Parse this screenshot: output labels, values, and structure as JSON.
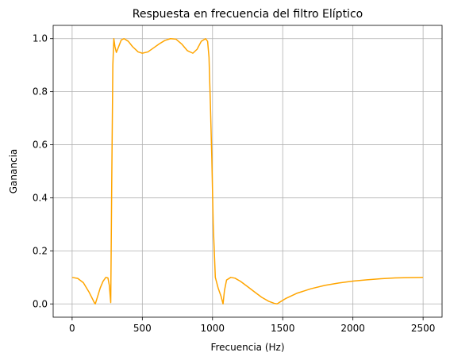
{
  "chart_data": {
    "type": "line",
    "title": "Respuesta en frecuencia del filtro Elíptico",
    "xlabel": "Frecuencia (Hz)",
    "ylabel": "Ganancia",
    "xlim": [
      -135,
      2635
    ],
    "ylim": [
      -0.05,
      1.05
    ],
    "xticks": [
      0,
      500,
      1000,
      1500,
      2000,
      2500
    ],
    "yticks": [
      0.0,
      0.2,
      0.4,
      0.6,
      0.8,
      1.0
    ],
    "xtick_labels": [
      "0",
      "500",
      "1000",
      "1500",
      "2000",
      "2500"
    ],
    "ytick_labels": [
      "0.0",
      "0.2",
      "0.4",
      "0.6",
      "0.8",
      "1.0"
    ],
    "grid": true,
    "series": [
      {
        "color": "#FFA500",
        "x": [
          0,
          40,
          80,
          120,
          160,
          165,
          180,
          200,
          220,
          240,
          255,
          265,
          275,
          282,
          290,
          297,
          305,
          315,
          330,
          350,
          370,
          400,
          430,
          470,
          500,
          540,
          580,
          620,
          660,
          700,
          740,
          780,
          820,
          860,
          890,
          920,
          950,
          965,
          975,
          985,
          995,
          1005,
          1020,
          1040,
          1060,
          1075,
          1085,
          1100,
          1130,
          1160,
          1200,
          1250,
          1300,
          1350,
          1400,
          1440,
          1460,
          1480,
          1520,
          1600,
          1700,
          1800,
          1900,
          2000,
          2100,
          2200,
          2300,
          2400,
          2500
        ],
        "y": [
          0.1,
          0.096,
          0.08,
          0.045,
          0.003,
          0.0,
          0.025,
          0.06,
          0.085,
          0.1,
          0.098,
          0.07,
          0.005,
          0.45,
          0.9,
          1.0,
          0.97,
          0.948,
          0.968,
          0.995,
          1.0,
          0.99,
          0.97,
          0.95,
          0.945,
          0.95,
          0.965,
          0.98,
          0.993,
          1.0,
          0.998,
          0.98,
          0.955,
          0.945,
          0.96,
          0.99,
          1.0,
          0.99,
          0.93,
          0.75,
          0.55,
          0.3,
          0.1,
          0.06,
          0.03,
          0.0,
          0.05,
          0.09,
          0.1,
          0.097,
          0.085,
          0.065,
          0.045,
          0.025,
          0.01,
          0.002,
          0.0,
          0.007,
          0.02,
          0.04,
          0.057,
          0.07,
          0.079,
          0.086,
          0.091,
          0.095,
          0.098,
          0.099,
          0.1
        ]
      }
    ]
  }
}
